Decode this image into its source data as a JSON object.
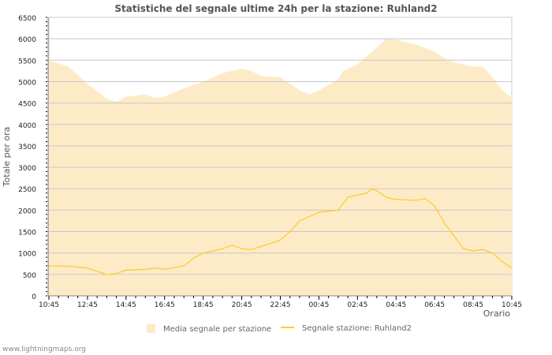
{
  "chart_data": {
    "type": "area",
    "title": "Statistiche del segnale ultime 24h per la stazione: Ruhland2",
    "xlabel": "Orario",
    "ylabel": "Totale per ora",
    "ylim": [
      0,
      6500
    ],
    "yticks": [
      0,
      500,
      1000,
      1500,
      2000,
      2500,
      3000,
      3500,
      4000,
      4500,
      5000,
      5500,
      6000,
      6500
    ],
    "xticks": [
      "10:45",
      "12:45",
      "14:45",
      "16:45",
      "18:45",
      "20:45",
      "22:45",
      "00:45",
      "02:45",
      "04:45",
      "06:45",
      "08:45",
      "10:45"
    ],
    "x_unit": "hours since 10:45",
    "grid": true,
    "legend_position": "bottom",
    "series": [
      {
        "name": "Media segnale per stazione",
        "type": "area",
        "color": "#fdebc8",
        "x": [
          0,
          1,
          2,
          3,
          3.5,
          4,
          5,
          5.5,
          6,
          7,
          8,
          9,
          10,
          10.5,
          11,
          12,
          12.5,
          13,
          13.5,
          14,
          15,
          15.25,
          16,
          17,
          17.5,
          18,
          19,
          20,
          20.5,
          21,
          22,
          22.5,
          23,
          23.5,
          24
        ],
        "values": [
          5500,
          5350,
          4950,
          4600,
          4530,
          4650,
          4700,
          4620,
          4650,
          4850,
          5000,
          5200,
          5300,
          5250,
          5130,
          5100,
          4950,
          4800,
          4700,
          4800,
          5050,
          5250,
          5400,
          5800,
          6000,
          5980,
          5870,
          5700,
          5550,
          5450,
          5350,
          5350,
          5100,
          4800,
          4620
        ]
      },
      {
        "name": "Segnale stazione: Ruhland2",
        "type": "line",
        "color": "#ffcc33",
        "x": [
          0,
          1,
          2,
          3,
          3.5,
          4,
          5,
          5.5,
          6,
          7,
          7.5,
          8,
          9,
          9.5,
          10,
          10.5,
          11,
          12,
          12.5,
          13,
          13.5,
          14,
          15,
          15.5,
          16,
          16.5,
          16.75,
          17,
          17.5,
          18,
          19,
          19.5,
          20,
          20.5,
          21,
          21.5,
          22,
          22.5,
          23,
          23.5,
          24
        ],
        "values": [
          700,
          690,
          650,
          500,
          520,
          600,
          620,
          650,
          620,
          700,
          880,
          1000,
          1100,
          1180,
          1100,
          1080,
          1150,
          1300,
          1500,
          1750,
          1850,
          1950,
          2000,
          2300,
          2350,
          2400,
          2500,
          2450,
          2300,
          2250,
          2230,
          2270,
          2100,
          1700,
          1400,
          1100,
          1050,
          1080,
          1000,
          800,
          650
        ]
      }
    ]
  },
  "credit": "www.lightningmaps.org"
}
